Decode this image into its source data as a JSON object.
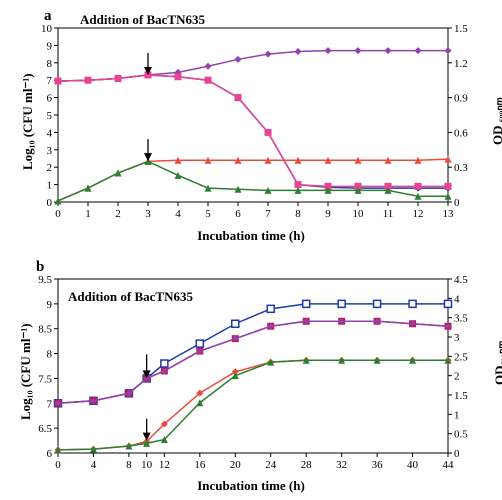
{
  "panel_a": {
    "label": "a",
    "annotation": "Addition of  BacTN635",
    "x_axis_title": "Incubation time (h)",
    "y_left_title": "Log₁₀ (CFU ml⁻¹)",
    "y_right_title": "OD ₆₀₀ₙₘ",
    "type": "line-dual-axis",
    "x_ticks": [
      0,
      1,
      2,
      3,
      4,
      5,
      6,
      7,
      8,
      9,
      10,
      11,
      12,
      13
    ],
    "y_left_ticks": [
      0,
      1,
      2,
      3,
      4,
      5,
      6,
      7,
      8,
      9,
      10
    ],
    "y_right_ticks": [
      0,
      0.3,
      0.6,
      0.9,
      1.2,
      1.5
    ],
    "x_range": [
      0,
      13
    ],
    "y_left_range": [
      0,
      10
    ],
    "y_right_range": [
      0,
      1.5
    ],
    "bg_color": "#ffffff",
    "tick_color": "#000000",
    "axis_color": "#000000",
    "tick_fontsize": 11,
    "axis_title_fontsize": 13,
    "axis_title_weight": "bold",
    "arrows": [
      {
        "x": 3,
        "y_left": 7.3,
        "len": 22
      },
      {
        "x": 3,
        "y_left": 2.35,
        "len": 22
      }
    ],
    "series": [
      {
        "name": "purple-cfu-untreated",
        "axis": "left",
        "color": "#8e44ad",
        "marker": "diamond",
        "marker_size": 7,
        "line_width": 1.5,
        "data": [
          [
            0,
            6.95
          ],
          [
            1,
            7.0
          ],
          [
            2,
            7.1
          ],
          [
            3,
            7.3
          ],
          [
            4,
            7.45
          ],
          [
            5,
            7.8
          ],
          [
            6,
            8.2
          ],
          [
            7,
            8.5
          ],
          [
            8,
            8.65
          ],
          [
            9,
            8.7
          ],
          [
            10,
            8.7
          ],
          [
            11,
            8.7
          ],
          [
            12,
            8.7
          ],
          [
            13,
            8.7
          ]
        ]
      },
      {
        "name": "blue-cfu-treated",
        "axis": "left",
        "color": "#1f3aa8",
        "marker": "diamond",
        "marker_size": 7,
        "line_width": 1.5,
        "data": [
          [
            0,
            6.95
          ],
          [
            1,
            7.0
          ],
          [
            2,
            7.1
          ],
          [
            3,
            7.3
          ],
          [
            4,
            7.2
          ],
          [
            5,
            7.0
          ],
          [
            6,
            6.0
          ],
          [
            7,
            4.0
          ],
          [
            8,
            1.0
          ],
          [
            9,
            0.85
          ],
          [
            10,
            0.8
          ],
          [
            11,
            0.8
          ],
          [
            12,
            0.8
          ],
          [
            13,
            0.8
          ]
        ]
      },
      {
        "name": "magenta-cfu",
        "axis": "left",
        "color": "#e84393",
        "marker": "square",
        "marker_size": 7,
        "line_width": 1.5,
        "data": [
          [
            0,
            6.95
          ],
          [
            1,
            7.0
          ],
          [
            2,
            7.1
          ],
          [
            3,
            7.3
          ],
          [
            4,
            7.2
          ],
          [
            5,
            7.0
          ],
          [
            6,
            6.0
          ],
          [
            7,
            4.0
          ],
          [
            8,
            1.0
          ],
          [
            9,
            0.9
          ],
          [
            10,
            0.9
          ],
          [
            11,
            0.9
          ],
          [
            12,
            0.9
          ],
          [
            13,
            0.9
          ]
        ]
      },
      {
        "name": "red-od-treated",
        "axis": "right",
        "color": "#e74c3c",
        "marker": "triangle",
        "marker_size": 7,
        "line_width": 1.5,
        "data": [
          [
            0,
            0.01
          ],
          [
            1,
            0.12
          ],
          [
            2,
            0.25
          ],
          [
            3,
            0.35
          ],
          [
            4,
            0.36
          ],
          [
            5,
            0.36
          ],
          [
            6,
            0.36
          ],
          [
            7,
            0.36
          ],
          [
            8,
            0.36
          ],
          [
            9,
            0.36
          ],
          [
            10,
            0.36
          ],
          [
            11,
            0.36
          ],
          [
            12,
            0.36
          ],
          [
            13,
            0.37
          ]
        ]
      },
      {
        "name": "green-od-untreated",
        "axis": "right",
        "color": "#2e7d32",
        "marker": "triangle",
        "marker_size": 7,
        "line_width": 1.5,
        "data": [
          [
            0,
            0.01
          ],
          [
            1,
            0.12
          ],
          [
            2,
            0.25
          ],
          [
            3,
            0.35
          ],
          [
            4,
            0.23
          ],
          [
            5,
            0.12
          ],
          [
            6,
            0.11
          ],
          [
            7,
            0.1
          ],
          [
            8,
            0.1
          ],
          [
            9,
            0.1
          ],
          [
            10,
            0.1
          ],
          [
            11,
            0.1
          ],
          [
            12,
            0.05
          ],
          [
            13,
            0.05
          ]
        ]
      }
    ]
  },
  "panel_b": {
    "label": "b",
    "annotation": "Addition of  BacTN635",
    "x_axis_title": "Incubation time (h)",
    "y_left_title": "Log₁₀ (CFU ml⁻¹)",
    "y_right_title": "OD₆₀₀ₙₘ",
    "type": "line-dual-axis",
    "x_ticks": [
      0,
      4,
      8,
      10,
      12,
      16,
      20,
      24,
      28,
      32,
      36,
      40,
      44
    ],
    "y_left_ticks": [
      6,
      6.5,
      7,
      7.5,
      8,
      8.5,
      9,
      9.5
    ],
    "y_right_ticks": [
      0,
      0.5,
      1,
      1.5,
      2,
      2.5,
      3,
      3.5,
      4,
      4.5
    ],
    "x_range": [
      0,
      44
    ],
    "y_left_range": [
      6,
      9.5
    ],
    "y_right_range": [
      0,
      4.5
    ],
    "bg_color": "#ffffff",
    "tick_color": "#000000",
    "axis_color": "#000000",
    "tick_fontsize": 11,
    "axis_title_fontsize": 13,
    "axis_title_weight": "bold",
    "arrows": [
      {
        "x": 10,
        "y_left": 7.5,
        "len": 24
      },
      {
        "x": 10,
        "y_left": 6.25,
        "len": 22
      }
    ],
    "series": [
      {
        "name": "blue-cfu-open",
        "axis": "left",
        "color": "#1f3aa8",
        "marker": "square-open",
        "marker_size": 7,
        "line_width": 1.5,
        "data": [
          [
            0,
            7.0
          ],
          [
            4,
            7.05
          ],
          [
            8,
            7.2
          ],
          [
            10,
            7.5
          ],
          [
            12,
            7.8
          ],
          [
            16,
            8.2
          ],
          [
            20,
            8.6
          ],
          [
            24,
            8.9
          ],
          [
            28,
            9.0
          ],
          [
            32,
            9.0
          ],
          [
            36,
            9.0
          ],
          [
            40,
            9.0
          ],
          [
            44,
            9.0
          ]
        ]
      },
      {
        "name": "magenta-cfu",
        "axis": "left",
        "color": "#c2185b",
        "marker": "square",
        "marker_size": 7,
        "line_width": 1.5,
        "data": [
          [
            0,
            7.0
          ],
          [
            4,
            7.05
          ],
          [
            8,
            7.2
          ],
          [
            10,
            7.5
          ],
          [
            12,
            7.65
          ],
          [
            16,
            8.05
          ],
          [
            20,
            8.3
          ],
          [
            24,
            8.55
          ],
          [
            28,
            8.65
          ],
          [
            32,
            8.65
          ],
          [
            36,
            8.65
          ],
          [
            40,
            8.6
          ],
          [
            44,
            8.55
          ]
        ]
      },
      {
        "name": "purple-cfu",
        "axis": "left",
        "color": "#8e44ad",
        "marker": "diamond",
        "marker_size": 6,
        "line_width": 1.5,
        "data": [
          [
            0,
            7.0
          ],
          [
            4,
            7.05
          ],
          [
            8,
            7.2
          ],
          [
            10,
            7.5
          ],
          [
            12,
            7.65
          ],
          [
            16,
            8.05
          ],
          [
            20,
            8.3
          ],
          [
            24,
            8.55
          ],
          [
            28,
            8.65
          ],
          [
            32,
            8.65
          ],
          [
            36,
            8.65
          ],
          [
            40,
            8.6
          ],
          [
            44,
            8.55
          ]
        ]
      },
      {
        "name": "red-od",
        "axis": "right",
        "color": "#e74c3c",
        "marker": "diamond",
        "marker_size": 7,
        "line_width": 1.5,
        "data": [
          [
            0,
            0.08
          ],
          [
            4,
            0.1
          ],
          [
            8,
            0.18
          ],
          [
            10,
            0.3
          ],
          [
            12,
            0.75
          ],
          [
            16,
            1.55
          ],
          [
            20,
            2.1
          ],
          [
            24,
            2.35
          ],
          [
            28,
            2.4
          ],
          [
            32,
            2.4
          ],
          [
            36,
            2.4
          ],
          [
            40,
            2.4
          ],
          [
            44,
            2.4
          ]
        ]
      },
      {
        "name": "green-od",
        "axis": "right",
        "color": "#2e7d32",
        "marker": "triangle",
        "marker_size": 7,
        "line_width": 1.5,
        "data": [
          [
            0,
            0.08
          ],
          [
            4,
            0.1
          ],
          [
            8,
            0.18
          ],
          [
            10,
            0.25
          ],
          [
            12,
            0.35
          ],
          [
            16,
            1.3
          ],
          [
            20,
            2.0
          ],
          [
            24,
            2.35
          ],
          [
            28,
            2.4
          ],
          [
            32,
            2.4
          ],
          [
            36,
            2.4
          ],
          [
            40,
            2.4
          ],
          [
            44,
            2.4
          ]
        ]
      }
    ]
  }
}
